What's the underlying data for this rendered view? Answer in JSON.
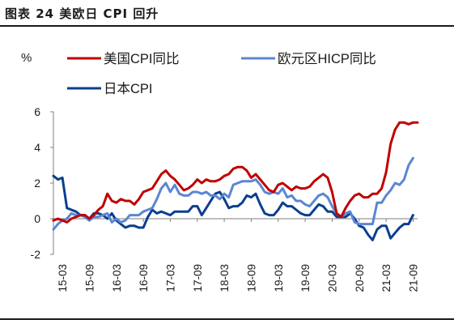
{
  "figure": {
    "title": "图表 24  美欧日 CPI 回升"
  },
  "chart_data": {
    "type": "line",
    "title": "美欧日 CPI 回升",
    "ylabel": "%",
    "xlabel": "",
    "ylim": [
      -2,
      6
    ],
    "yticks": [
      -2,
      0,
      2,
      4,
      6
    ],
    "x_tick_labels": [
      "15-03",
      "15-09",
      "16-03",
      "16-09",
      "17-03",
      "17-09",
      "18-03",
      "18-09",
      "19-03",
      "19-09",
      "20-03",
      "20-09",
      "21-03",
      "21-09"
    ],
    "x_start": "2015-01",
    "x_end": "2021-10",
    "grid": false,
    "legend_position": "top",
    "series": [
      {
        "name": "美国CPI同比",
        "color": "#c00000",
        "values": [
          -0.1,
          0.0,
          -0.1,
          -0.2,
          0.0,
          0.1,
          0.2,
          0.2,
          0.0,
          0.2,
          0.5,
          0.7,
          1.4,
          1.0,
          0.9,
          1.1,
          1.0,
          1.0,
          0.8,
          1.1,
          1.5,
          1.6,
          1.7,
          2.1,
          2.5,
          2.7,
          2.4,
          2.2,
          1.9,
          1.6,
          1.7,
          1.9,
          2.2,
          2.0,
          2.2,
          2.1,
          2.1,
          2.2,
          2.4,
          2.5,
          2.8,
          2.9,
          2.9,
          2.7,
          2.3,
          2.5,
          2.2,
          1.9,
          1.6,
          1.5,
          1.9,
          2.0,
          1.8,
          1.6,
          1.8,
          1.7,
          1.7,
          1.8,
          2.1,
          2.3,
          2.5,
          2.3,
          1.5,
          0.3,
          0.1,
          0.6,
          1.0,
          1.3,
          1.4,
          1.2,
          1.2,
          1.4,
          1.4,
          1.7,
          2.6,
          4.2,
          5.0,
          5.4,
          5.4,
          5.3,
          5.4,
          5.4
        ]
      },
      {
        "name": "欧元区HICP同比",
        "color": "#5b86d4",
        "values": [
          -0.6,
          -0.3,
          -0.1,
          0.0,
          0.3,
          0.2,
          0.2,
          0.1,
          -0.1,
          0.1,
          0.1,
          0.2,
          0.3,
          -0.2,
          0.0,
          -0.2,
          -0.1,
          0.2,
          0.2,
          0.2,
          0.4,
          0.5,
          0.6,
          1.1,
          1.7,
          2.0,
          1.5,
          1.9,
          1.4,
          1.3,
          1.3,
          1.5,
          1.5,
          1.4,
          1.5,
          1.3,
          1.3,
          1.1,
          1.4,
          1.2,
          1.9,
          2.0,
          2.1,
          2.1,
          2.1,
          2.2,
          1.9,
          1.5,
          1.4,
          1.5,
          1.4,
          1.7,
          1.2,
          1.3,
          1.0,
          1.0,
          0.8,
          0.7,
          1.0,
          1.3,
          1.4,
          1.2,
          0.7,
          0.3,
          0.1,
          0.3,
          0.4,
          -0.2,
          -0.3,
          -0.3,
          -0.3,
          -0.3,
          0.9,
          0.9,
          1.3,
          1.6,
          2.0,
          1.9,
          2.2,
          3.0,
          3.4
        ]
      },
      {
        "name": "日本CPI",
        "color": "#0b3f8e",
        "values": [
          2.4,
          2.2,
          2.3,
          0.6,
          0.5,
          0.4,
          0.2,
          0.2,
          0.0,
          0.3,
          0.3,
          0.2,
          0.0,
          0.3,
          -0.1,
          -0.3,
          -0.5,
          -0.4,
          -0.4,
          -0.5,
          -0.5,
          0.1,
          0.5,
          0.3,
          0.4,
          0.3,
          0.2,
          0.4,
          0.4,
          0.4,
          0.4,
          0.7,
          0.7,
          0.2,
          0.6,
          1.0,
          1.4,
          1.5,
          1.1,
          0.6,
          0.7,
          0.7,
          0.9,
          1.3,
          1.2,
          1.4,
          0.8,
          0.3,
          0.2,
          0.2,
          0.5,
          0.9,
          0.7,
          0.7,
          0.5,
          0.3,
          0.2,
          0.2,
          0.5,
          0.8,
          0.7,
          0.4,
          0.4,
          0.1,
          0.1,
          0.1,
          0.3,
          0.0,
          -0.4,
          -0.5,
          -0.9,
          -1.2,
          -0.6,
          -0.4,
          -0.4,
          -1.1,
          -0.8,
          -0.5,
          -0.3,
          -0.3,
          0.2
        ]
      }
    ]
  }
}
